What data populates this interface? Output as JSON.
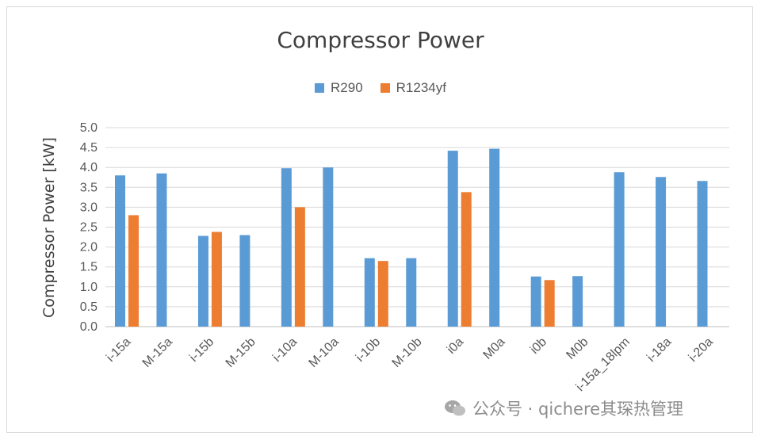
{
  "chart_data": {
    "type": "bar",
    "title": "Compressor Power",
    "ylabel": "Compressor Power [kW]",
    "xlabel": "",
    "ylim": [
      0,
      5.0
    ],
    "yticks": [
      "0.0",
      "0.5",
      "1.0",
      "1.5",
      "2.0",
      "2.5",
      "3.0",
      "3.5",
      "4.0",
      "4.5",
      "5.0"
    ],
    "grid": true,
    "legend_position": "top-center",
    "categories": [
      "i-15a",
      "M-15a",
      "i-15b",
      "M-15b",
      "i-10a",
      "M-10a",
      "i-10b",
      "M-10b",
      "i0a",
      "M0a",
      "i0b",
      "M0b",
      "i-15a_18lpm",
      "i-18a",
      "i-20a"
    ],
    "series": [
      {
        "name": "R290",
        "color": "#5b9bd5",
        "values": [
          3.8,
          3.85,
          2.28,
          2.3,
          3.98,
          4.0,
          1.72,
          1.72,
          4.42,
          4.47,
          1.26,
          1.27,
          3.88,
          3.76,
          3.66
        ]
      },
      {
        "name": "R1234yf",
        "color": "#ed7d31",
        "values": [
          2.8,
          null,
          2.38,
          null,
          3.0,
          null,
          1.65,
          null,
          3.38,
          null,
          1.17,
          null,
          null,
          null,
          null
        ]
      }
    ]
  },
  "watermark": {
    "text": "公众号 · qichere其琛热管理",
    "icon": "wechat-icon"
  }
}
